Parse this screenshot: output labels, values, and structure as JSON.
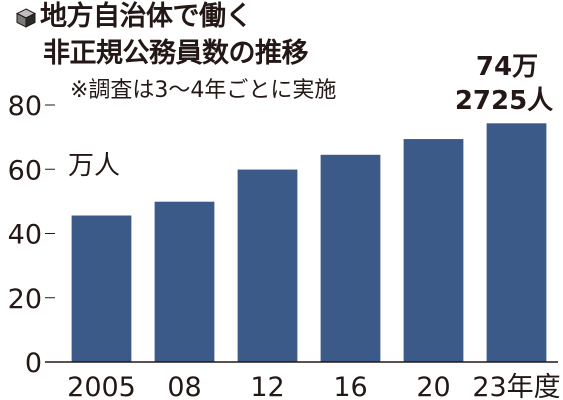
{
  "header": {
    "title_line1": "地方自治体で働く",
    "title_line2": "非正規公務員数の推移",
    "note": "※調査は3～4年ごとに実施",
    "icon": "cube-icon"
  },
  "callout": {
    "line1": "74万",
    "line2": "2725人"
  },
  "colors": {
    "bar": "#3c5a87",
    "axis": "#231815",
    "text": "#231815"
  },
  "chart_data": {
    "type": "bar",
    "categories": [
      "2005",
      "08",
      "12",
      "16",
      "20",
      "23年度"
    ],
    "values": [
      45.6,
      49.9,
      59.9,
      64.5,
      69.4,
      74.3
    ],
    "unit_label": "万人",
    "ylim": [
      0,
      80
    ],
    "yticks": [
      0,
      20,
      40,
      60,
      80
    ],
    "grid": false,
    "legend": "none"
  }
}
